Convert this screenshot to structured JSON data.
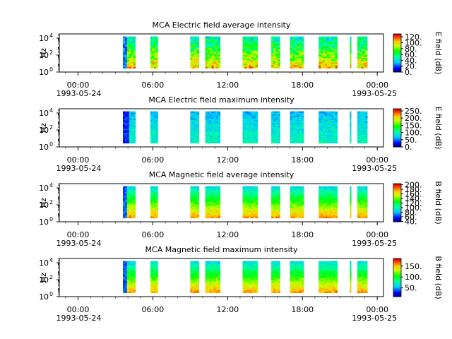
{
  "chart_data": [
    {
      "type": "heatmap",
      "title": "MCA  Electric field average intensity",
      "ylabel": "Hz",
      "yticks": [
        "10",
        "10",
        "10"
      ],
      "yexp": [
        "0",
        "2",
        "4"
      ],
      "xticks": [
        "00:00",
        "06:00",
        "12:00",
        "18:00",
        "00:00"
      ],
      "xdates": [
        "1993-05-24",
        "1993-05-25"
      ],
      "colorbar": {
        "label": "E field (dB)",
        "ticks": [
          "0.",
          "20.",
          "40.",
          "60.",
          "80.",
          "100.",
          "120."
        ],
        "range": [
          0,
          130
        ]
      },
      "data_intervals_hours": [
        [
          3.6,
          4.6
        ],
        [
          5.8,
          6.4
        ],
        [
          9.0,
          9.7
        ],
        [
          10.2,
          11.4
        ],
        [
          13.2,
          14.4
        ],
        [
          15.5,
          16.2
        ],
        [
          17.0,
          18.1
        ],
        [
          19.3,
          20.8
        ],
        [
          21.8,
          21.9
        ],
        [
          22.4,
          23.2
        ]
      ],
      "colorscale": "rainbow"
    },
    {
      "type": "heatmap",
      "title": "MCA  Electric field maximum intensity",
      "ylabel": "Hz",
      "yticks": [
        "10",
        "10",
        "10"
      ],
      "yexp": [
        "0",
        "2",
        "4"
      ],
      "xticks": [
        "00:00",
        "06:00",
        "12:00",
        "18:00",
        "00:00"
      ],
      "xdates": [
        "1993-05-24",
        "1993-05-25"
      ],
      "colorbar": {
        "label": "E field (dB)",
        "ticks": [
          "0.",
          "50.",
          "100.",
          "150.",
          "200.",
          "250."
        ],
        "range": [
          0,
          265
        ]
      },
      "data_intervals_hours": [
        [
          3.6,
          4.6
        ],
        [
          5.8,
          6.4
        ],
        [
          9.0,
          9.7
        ],
        [
          10.2,
          11.4
        ],
        [
          13.2,
          14.4
        ],
        [
          15.5,
          16.2
        ],
        [
          17.0,
          18.1
        ],
        [
          19.3,
          20.8
        ],
        [
          21.8,
          21.9
        ],
        [
          22.4,
          23.2
        ]
      ],
      "colorscale": "rainbow"
    },
    {
      "type": "heatmap",
      "title": "MCA  Magnetic field average intensity",
      "ylabel": "Hz",
      "yticks": [
        "10",
        "10",
        "10"
      ],
      "yexp": [
        "0",
        "2",
        "4"
      ],
      "xticks": [
        "00:00",
        "06:00",
        "12:00",
        "18:00",
        "00:00"
      ],
      "xdates": [
        "1993-05-24",
        "1993-05-25"
      ],
      "colorbar": {
        "label": "B field (dB)",
        "ticks": [
          "40.",
          "60.",
          "80.",
          "100.",
          "120.",
          "140.",
          "160.",
          "180.",
          "200."
        ],
        "range": [
          38,
          205
        ]
      },
      "data_intervals_hours": [
        [
          3.6,
          4.6
        ],
        [
          5.8,
          6.4
        ],
        [
          9.0,
          9.7
        ],
        [
          10.2,
          11.4
        ],
        [
          13.2,
          14.4
        ],
        [
          15.5,
          16.2
        ],
        [
          17.0,
          18.1
        ],
        [
          19.3,
          20.8
        ],
        [
          21.8,
          21.9
        ],
        [
          22.4,
          23.2
        ]
      ],
      "colorscale": "rainbow"
    },
    {
      "type": "heatmap",
      "title": "MCA  Magnetic field maximum intensity",
      "ylabel": "Hz",
      "yticks": [
        "10",
        "10",
        "10"
      ],
      "yexp": [
        "0",
        "2",
        "4"
      ],
      "xticks": [
        "00:00",
        "06:00",
        "12:00",
        "18:00",
        "00:00"
      ],
      "xdates": [
        "1993-05-24",
        "1993-05-25"
      ],
      "colorbar": {
        "label": "B field (dB)",
        "ticks": [
          "50.",
          "100.",
          "150."
        ],
        "range": [
          10,
          185
        ]
      },
      "data_intervals_hours": [
        [
          3.6,
          4.6
        ],
        [
          5.8,
          6.4
        ],
        [
          9.0,
          9.7
        ],
        [
          10.2,
          11.4
        ],
        [
          13.2,
          14.4
        ],
        [
          15.5,
          16.2
        ],
        [
          17.0,
          18.1
        ],
        [
          19.3,
          20.8
        ],
        [
          21.8,
          21.9
        ],
        [
          22.4,
          23.2
        ]
      ],
      "colorscale": "rainbow"
    }
  ]
}
